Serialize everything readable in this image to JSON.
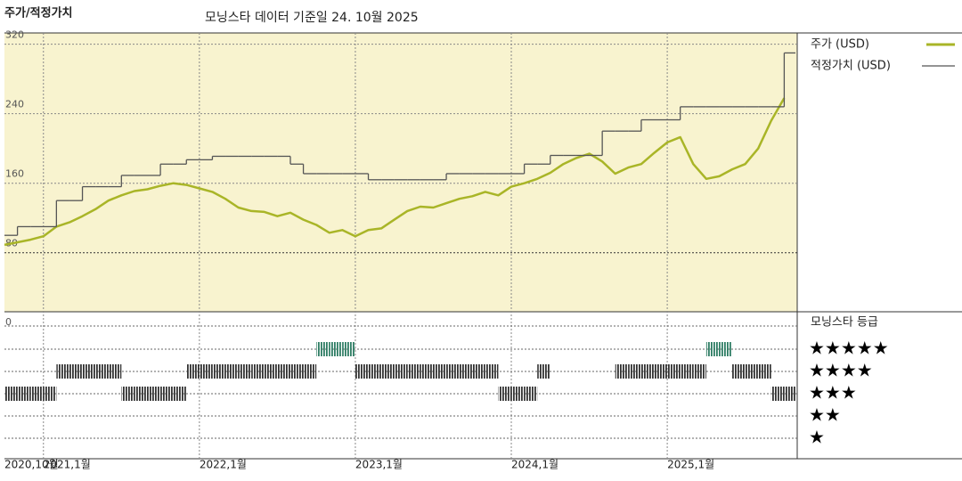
{
  "chart_data": {
    "type": "line",
    "title": "주가/적정가치",
    "subtitle": "모닝스타 데이터 기준일 24. 10월 2025",
    "x": [
      "2020-10",
      "2020-11",
      "2020-12",
      "2021-01",
      "2021-02",
      "2021-03",
      "2021-04",
      "2021-05",
      "2021-06",
      "2021-07",
      "2021-08",
      "2021-09",
      "2021-10",
      "2021-11",
      "2021-12",
      "2022-01",
      "2022-02",
      "2022-03",
      "2022-04",
      "2022-05",
      "2022-06",
      "2022-07",
      "2022-08",
      "2022-09",
      "2022-10",
      "2022-11",
      "2022-12",
      "2023-01",
      "2023-02",
      "2023-03",
      "2023-04",
      "2023-05",
      "2023-06",
      "2023-07",
      "2023-08",
      "2023-09",
      "2023-10",
      "2023-11",
      "2023-12",
      "2024-01",
      "2024-02",
      "2024-03",
      "2024-04",
      "2024-05",
      "2024-06",
      "2024-07",
      "2024-08",
      "2024-09",
      "2024-10",
      "2024-11",
      "2024-12",
      "2025-01",
      "2025-02",
      "2025-03",
      "2025-04",
      "2025-05",
      "2025-06",
      "2025-07",
      "2025-08",
      "2025-09",
      "2025-10"
    ],
    "xlim": [
      "2020-10",
      "2025-11"
    ],
    "xticks": [
      {
        "value": "2020-10",
        "label": "2020,10월"
      },
      {
        "value": "2021-01",
        "label": "2021,1월"
      },
      {
        "value": "2022-01",
        "label": "2022,1월"
      },
      {
        "value": "2023-01",
        "label": "2023,1월"
      },
      {
        "value": "2024-01",
        "label": "2024,1월"
      },
      {
        "value": "2025-01",
        "label": "2025,1월"
      }
    ],
    "ylim": [
      12,
      333
    ],
    "yticks": [
      80,
      160,
      240,
      320
    ],
    "grid": true,
    "series": [
      {
        "name": "주가 (USD)",
        "color": "#a9b527",
        "values": [
          89,
          92,
          95,
          99,
          110,
          115,
          122,
          130,
          140,
          146,
          151,
          153,
          157,
          160,
          158,
          154,
          150,
          142,
          132,
          128,
          127,
          122,
          126,
          118,
          112,
          103,
          106,
          99,
          106,
          108,
          118,
          128,
          133,
          132,
          137,
          142,
          145,
          150,
          146,
          156,
          160,
          165,
          172,
          182,
          189,
          194,
          185,
          171,
          178,
          182,
          195,
          207,
          213,
          182,
          165,
          168,
          176,
          182,
          200,
          232,
          258
        ]
      },
      {
        "name": "적정가치 (USD)",
        "color": "#555555",
        "step": true,
        "values": [
          100,
          110,
          110,
          110,
          140,
          140,
          156,
          156,
          156,
          169,
          169,
          169,
          182,
          182,
          187,
          187,
          191,
          191,
          191,
          191,
          191,
          191,
          182,
          171,
          171,
          171,
          171,
          171,
          164,
          164,
          164,
          164,
          164,
          164,
          171,
          171,
          171,
          171,
          171,
          171,
          182,
          182,
          192,
          192,
          192,
          192,
          220,
          220,
          220,
          233,
          233,
          233,
          248,
          248,
          248,
          248,
          248,
          248,
          248,
          248,
          310
        ]
      }
    ],
    "ratings": {
      "title": "모닝스타 등급",
      "axis_label": "0",
      "levels": [
        5,
        4,
        3,
        2,
        1
      ],
      "labels": [
        "★★★★★",
        "★★★★",
        "★★★",
        "★★",
        "★"
      ],
      "color": "#333333",
      "top_color": "#2e7d64",
      "values": [
        3,
        3,
        3,
        3,
        4,
        4,
        4,
        4,
        4,
        3,
        3,
        3,
        3,
        3,
        4,
        4,
        4,
        4,
        4,
        4,
        4,
        4,
        4,
        4,
        5,
        5,
        5,
        4,
        4,
        4,
        4,
        4,
        4,
        4,
        4,
        4,
        4,
        4,
        3,
        3,
        3,
        4,
        null,
        null,
        null,
        null,
        null,
        4,
        4,
        4,
        4,
        4,
        4,
        4,
        5,
        5,
        4,
        4,
        4,
        3,
        3
      ]
    }
  }
}
